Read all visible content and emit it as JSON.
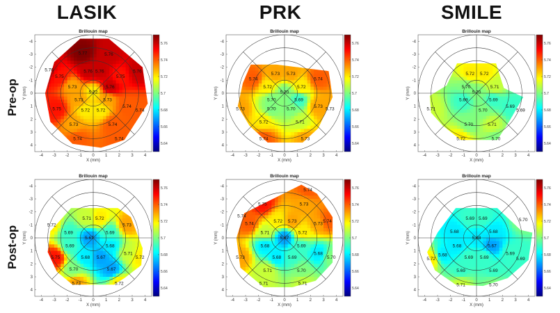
{
  "col_titles": [
    "LASIK",
    "PRK",
    "SMILE"
  ],
  "row_titles": [
    "Pre-op",
    "Post-op"
  ],
  "colorbar_ticks": [
    "5.76",
    "5.74",
    "5.72",
    "5.7",
    "5.68",
    "5.66",
    "5.64"
  ],
  "colormap": [
    "#00007f",
    "#0000ff",
    "#007fff",
    "#00ffff",
    "#7fff7f",
    "#ffff00",
    "#ff7f00",
    "#ff0000",
    "#7f0000"
  ],
  "chart_data": [
    {
      "type": "heatmap",
      "title": "Brillouin map",
      "xlabel": "X (mm)",
      "ylabel": "Y (mm)",
      "xlim": [
        -4.5,
        4.5
      ],
      "ylim": [
        -4.5,
        4.5
      ],
      "y_reversed": true,
      "clim": [
        5.63,
        5.77
      ],
      "xticks": [
        "-4",
        "-3",
        "-2",
        "-1",
        "0",
        "1",
        "2",
        "3",
        "4"
      ],
      "yticks": [
        "-4",
        "-3",
        "-2",
        "-1",
        "0",
        "1",
        "2",
        "3",
        "4"
      ],
      "labels": [
        {
          "x": -0.8,
          "y": -3.1,
          "v": "5.77"
        },
        {
          "x": 1.2,
          "y": -3.0,
          "v": "5.76"
        },
        {
          "x": -3.4,
          "y": -1.8,
          "v": "5.76"
        },
        {
          "x": -0.4,
          "y": -1.7,
          "v": "5.76"
        },
        {
          "x": 0.5,
          "y": -1.7,
          "v": "5.76"
        },
        {
          "x": 3.4,
          "y": -1.7,
          "v": "5.76"
        },
        {
          "x": -2.6,
          "y": -1.3,
          "v": "5.75"
        },
        {
          "x": 2.1,
          "y": -1.3,
          "v": "5.75"
        },
        {
          "x": -1.6,
          "y": -0.5,
          "v": "5.73"
        },
        {
          "x": 1.3,
          "y": -0.5,
          "v": "5.76"
        },
        {
          "x": 0.0,
          "y": -0.1,
          "v": "5.72"
        },
        {
          "x": -1.1,
          "y": 0.5,
          "v": "5.73"
        },
        {
          "x": 1.1,
          "y": 0.5,
          "v": "5.73"
        },
        {
          "x": -2.8,
          "y": 1.2,
          "v": "5.75"
        },
        {
          "x": 2.6,
          "y": 1.0,
          "v": "5.74"
        },
        {
          "x": 3.6,
          "y": 1.3,
          "v": "5.74"
        },
        {
          "x": -0.6,
          "y": 1.3,
          "v": "5.72"
        },
        {
          "x": 0.6,
          "y": 1.3,
          "v": "5.72"
        },
        {
          "x": -1.5,
          "y": 2.4,
          "v": "5.73"
        },
        {
          "x": 1.5,
          "y": 2.4,
          "v": "5.74"
        },
        {
          "x": -1.2,
          "y": 3.5,
          "v": "5.74"
        },
        {
          "x": 2.0,
          "y": 3.5,
          "v": "5.74"
        }
      ]
    },
    {
      "type": "heatmap",
      "title": "Brillouin map",
      "xlabel": "X (mm)",
      "ylabel": "Y (mm)",
      "xlim": [
        -4.5,
        4.5
      ],
      "ylim": [
        -4.5,
        4.5
      ],
      "y_reversed": true,
      "clim": [
        5.63,
        5.77
      ],
      "xticks": [
        "-4",
        "-3",
        "-2",
        "-1",
        "0",
        "1",
        "2",
        "3",
        "4"
      ],
      "yticks": [
        "-4",
        "-3",
        "-2",
        "-1",
        "0",
        "1",
        "2",
        "3",
        "4"
      ],
      "labels": [
        {
          "x": -0.7,
          "y": -1.5,
          "v": "5.73"
        },
        {
          "x": 0.5,
          "y": -1.5,
          "v": "5.73"
        },
        {
          "x": -2.4,
          "y": -1.1,
          "v": "5.74"
        },
        {
          "x": 2.6,
          "y": -1.1,
          "v": "5.74"
        },
        {
          "x": -1.3,
          "y": -0.5,
          "v": "5.72"
        },
        {
          "x": 1.3,
          "y": -0.5,
          "v": "5.72"
        },
        {
          "x": 0.0,
          "y": -0.1,
          "v": "5.70"
        },
        {
          "x": -1.0,
          "y": 0.5,
          "v": "5.70"
        },
        {
          "x": 1.1,
          "y": 0.5,
          "v": "5.69"
        },
        {
          "x": -3.4,
          "y": 1.2,
          "v": "5.73"
        },
        {
          "x": 2.6,
          "y": 1.0,
          "v": "5.73"
        },
        {
          "x": 3.5,
          "y": 1.2,
          "v": "5.73"
        },
        {
          "x": -1.0,
          "y": 1.2,
          "v": "5.70"
        },
        {
          "x": 0.5,
          "y": 1.2,
          "v": "5.70"
        },
        {
          "x": -1.6,
          "y": 2.2,
          "v": "5.72"
        },
        {
          "x": 1.2,
          "y": 2.2,
          "v": "5.71"
        },
        {
          "x": -1.6,
          "y": 3.5,
          "v": "5.74"
        },
        {
          "x": 1.6,
          "y": 3.5,
          "v": "5.73"
        }
      ]
    },
    {
      "type": "heatmap",
      "title": "Brillouin map",
      "xlabel": "X (mm)",
      "ylabel": "Y (mm)",
      "xlim": [
        -4.5,
        4.5
      ],
      "ylim": [
        -4.5,
        4.5
      ],
      "y_reversed": true,
      "clim": [
        5.63,
        5.77
      ],
      "xticks": [
        "-4",
        "-3",
        "-2",
        "-1",
        "0",
        "1",
        "2",
        "3",
        "4"
      ],
      "yticks": [
        "-4",
        "-3",
        "-2",
        "-1",
        "0",
        "1",
        "2",
        "3",
        "4"
      ],
      "labels": [
        {
          "x": -0.5,
          "y": -1.5,
          "v": "5.72"
        },
        {
          "x": 0.6,
          "y": -1.5,
          "v": "5.72"
        },
        {
          "x": -0.8,
          "y": -0.5,
          "v": "5.70"
        },
        {
          "x": 1.4,
          "y": -0.5,
          "v": "5.71"
        },
        {
          "x": 0.0,
          "y": -0.1,
          "v": "5.70"
        },
        {
          "x": -1.0,
          "y": 0.5,
          "v": "5.69"
        },
        {
          "x": 1.3,
          "y": 0.5,
          "v": "5.69"
        },
        {
          "x": -3.5,
          "y": 1.2,
          "v": "5.71"
        },
        {
          "x": 2.6,
          "y": 1.0,
          "v": "5.69"
        },
        {
          "x": 3.4,
          "y": 1.3,
          "v": "5.69"
        },
        {
          "x": 0.5,
          "y": 1.3,
          "v": "5.70"
        },
        {
          "x": -0.6,
          "y": 2.4,
          "v": "5.70"
        },
        {
          "x": 1.2,
          "y": 2.4,
          "v": "5.71"
        },
        {
          "x": -1.2,
          "y": 3.5,
          "v": "5.72"
        },
        {
          "x": 1.5,
          "y": 3.5,
          "v": "5.70"
        }
      ]
    },
    {
      "type": "heatmap",
      "title": "Brillouin map",
      "xlabel": "X (mm)",
      "ylabel": "Y (mm)",
      "xlim": [
        -4.5,
        4.5
      ],
      "ylim": [
        -4.5,
        4.5
      ],
      "y_reversed": true,
      "clim": [
        5.63,
        5.77
      ],
      "xticks": [
        "-4",
        "-3",
        "-2",
        "-1",
        "0",
        "1",
        "2",
        "3",
        "4"
      ],
      "yticks": [
        "-4",
        "-3",
        "-2",
        "-1",
        "0",
        "1",
        "2",
        "3",
        "4"
      ],
      "labels": [
        {
          "x": -0.5,
          "y": -1.5,
          "v": "5.71"
        },
        {
          "x": 0.5,
          "y": -1.5,
          "v": "5.72"
        },
        {
          "x": -3.2,
          "y": -1.0,
          "v": "5.72"
        },
        {
          "x": 2.6,
          "y": -1.0,
          "v": "5.73"
        },
        {
          "x": -1.9,
          "y": -0.4,
          "v": "5.69"
        },
        {
          "x": 1.3,
          "y": -0.4,
          "v": "5.69"
        },
        {
          "x": -0.3,
          "y": 0.0,
          "v": "5.67"
        },
        {
          "x": -1.8,
          "y": 0.6,
          "v": "5.69"
        },
        {
          "x": 1.3,
          "y": 0.6,
          "v": "5.68"
        },
        {
          "x": -2.9,
          "y": 1.5,
          "v": "5.75"
        },
        {
          "x": 2.7,
          "y": 1.2,
          "v": "5.71"
        },
        {
          "x": 3.6,
          "y": 1.5,
          "v": "5.72"
        },
        {
          "x": -0.6,
          "y": 1.5,
          "v": "5.68"
        },
        {
          "x": 0.6,
          "y": 1.5,
          "v": "5.67"
        },
        {
          "x": -1.5,
          "y": 2.4,
          "v": "5.70"
        },
        {
          "x": 1.4,
          "y": 2.4,
          "v": "5.67"
        },
        {
          "x": -1.3,
          "y": 3.5,
          "v": "5.73"
        },
        {
          "x": 2.0,
          "y": 3.5,
          "v": "5.72"
        }
      ]
    },
    {
      "type": "heatmap",
      "title": "Brillouin map",
      "xlabel": "X (mm)",
      "ylabel": "Y (mm)",
      "xlim": [
        -4.5,
        4.5
      ],
      "ylim": [
        -4.5,
        4.5
      ],
      "y_reversed": true,
      "clim": [
        5.63,
        5.77
      ],
      "xticks": [
        "-4",
        "-3",
        "-2",
        "-1",
        "0",
        "1",
        "2",
        "3",
        "4"
      ],
      "yticks": [
        "-4",
        "-3",
        "-2",
        "-1",
        "0",
        "1",
        "2",
        "3",
        "4"
      ],
      "labels": [
        {
          "x": 1.8,
          "y": -3.7,
          "v": "5.74"
        },
        {
          "x": -1.7,
          "y": -2.6,
          "v": "5.75"
        },
        {
          "x": 1.5,
          "y": -2.6,
          "v": "5.73"
        },
        {
          "x": -3.3,
          "y": -1.7,
          "v": "5.74"
        },
        {
          "x": 3.3,
          "y": -1.3,
          "v": "5.74"
        },
        {
          "x": -2.7,
          "y": -1.1,
          "v": "5.74"
        },
        {
          "x": 2.6,
          "y": -1.1,
          "v": "5.73"
        },
        {
          "x": -0.5,
          "y": -1.3,
          "v": "5.72"
        },
        {
          "x": 0.6,
          "y": -1.3,
          "v": "5.73"
        },
        {
          "x": -1.5,
          "y": -0.4,
          "v": "5.71"
        },
        {
          "x": 1.4,
          "y": -0.4,
          "v": "5.72"
        },
        {
          "x": 0.0,
          "y": 0.0,
          "v": "5.67"
        },
        {
          "x": -1.5,
          "y": 0.6,
          "v": "5.68"
        },
        {
          "x": 1.3,
          "y": 0.6,
          "v": "5.69"
        },
        {
          "x": -3.4,
          "y": 1.5,
          "v": "5.73"
        },
        {
          "x": 2.6,
          "y": 1.2,
          "v": "5.68"
        },
        {
          "x": 3.6,
          "y": 1.5,
          "v": "5.70"
        },
        {
          "x": -0.6,
          "y": 1.5,
          "v": "5.68"
        },
        {
          "x": 0.6,
          "y": 1.5,
          "v": "5.69"
        },
        {
          "x": -1.3,
          "y": 2.5,
          "v": "5.71"
        },
        {
          "x": 1.3,
          "y": 2.5,
          "v": "5.70"
        },
        {
          "x": -1.6,
          "y": 3.5,
          "v": "5.71"
        },
        {
          "x": 1.4,
          "y": 3.5,
          "v": "5.71"
        }
      ]
    },
    {
      "type": "heatmap",
      "title": "Brillouin map",
      "xlabel": "X (mm)",
      "ylabel": "Y (mm)",
      "xlim": [
        -4.5,
        4.5
      ],
      "ylim": [
        -4.5,
        4.5
      ],
      "y_reversed": true,
      "clim": [
        5.63,
        5.77
      ],
      "xticks": [
        "-4",
        "-3",
        "-2",
        "-1",
        "0",
        "1",
        "2",
        "3",
        "4"
      ],
      "yticks": [
        "-4",
        "-3",
        "-2",
        "-1",
        "0",
        "1",
        "2",
        "3",
        "4"
      ],
      "labels": [
        {
          "x": -0.5,
          "y": -1.5,
          "v": "5.69"
        },
        {
          "x": 0.5,
          "y": -1.5,
          "v": "5.69"
        },
        {
          "x": 3.6,
          "y": -1.4,
          "v": "5.70"
        },
        {
          "x": -1.7,
          "y": -0.5,
          "v": "5.68"
        },
        {
          "x": 1.3,
          "y": -0.5,
          "v": "5.68"
        },
        {
          "x": 0.0,
          "y": 0.0,
          "v": "5.68"
        },
        {
          "x": -1.5,
          "y": 0.6,
          "v": "5.68"
        },
        {
          "x": 1.2,
          "y": 0.6,
          "v": "5.67"
        },
        {
          "x": -2.6,
          "y": 1.3,
          "v": "5.68"
        },
        {
          "x": -3.5,
          "y": 1.6,
          "v": "5.72"
        },
        {
          "x": 2.6,
          "y": 1.2,
          "v": "5.69"
        },
        {
          "x": 3.4,
          "y": 1.6,
          "v": "5.69"
        },
        {
          "x": -0.6,
          "y": 1.5,
          "v": "5.69"
        },
        {
          "x": 0.6,
          "y": 1.5,
          "v": "5.69"
        },
        {
          "x": -1.2,
          "y": 2.5,
          "v": "5.69"
        },
        {
          "x": 1.3,
          "y": 2.5,
          "v": "5.69"
        },
        {
          "x": -1.2,
          "y": 3.6,
          "v": "5.71"
        },
        {
          "x": 1.3,
          "y": 3.6,
          "v": "5.70"
        }
      ]
    }
  ]
}
